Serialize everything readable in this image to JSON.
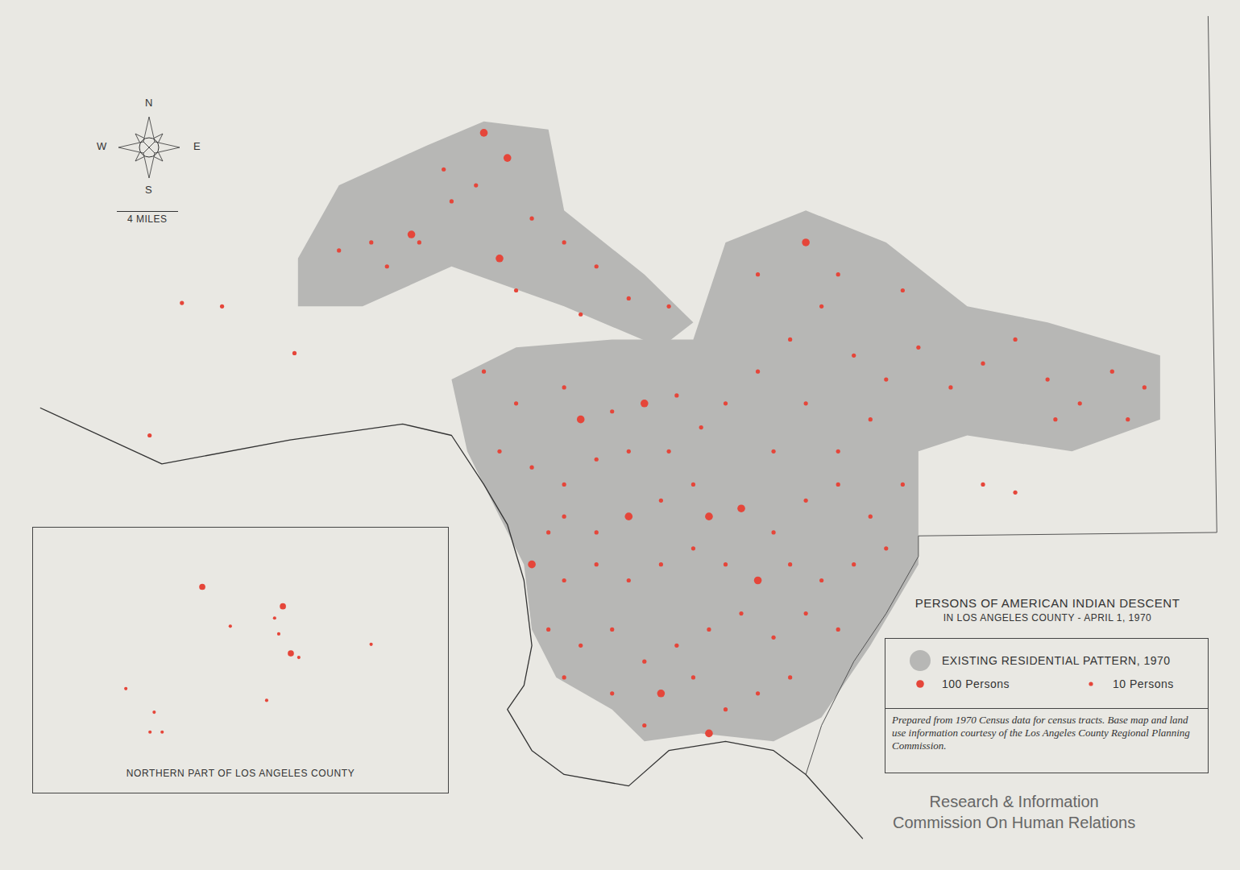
{
  "chart_data": {
    "type": "map",
    "title": "PERSONS OF AMERICAN INDIAN DESCENT",
    "subtitle": "IN LOS ANGELES COUNTY - APRIL 1, 1970",
    "tick_labels": false,
    "xlim": [
      -119.021,
      -117.6
    ],
    "ylim": [
      33.643,
      34.405
    ],
    "legend_entries": [
      {
        "name": "EXISTING RESIDENTIAL PATTERN, 1970",
        "color": "#b7b7b5"
      },
      {
        "name": "100 Persons",
        "persons": 100,
        "color": "#e5463a"
      },
      {
        "name": "10 Persons",
        "persons": 10,
        "color": "#e5463a"
      }
    ],
    "note": "Prepared from 1970 Census data for census tracts. Base map and land use information courtesy of the Los Angeles County Regional Planning Commission.",
    "credit": [
      "Research & Information",
      "Commission On Human Relations"
    ],
    "compass": [
      "N",
      "E",
      "S",
      "W"
    ],
    "scale_bar": {
      "miles": 4,
      "label": "4 MILES"
    },
    "coastline": [
      [
        -118.975,
        34.048
      ],
      [
        -118.836,
        33.999
      ],
      [
        -118.689,
        34.02
      ],
      [
        -118.56,
        34.034
      ],
      [
        -118.504,
        34.024
      ],
      [
        -118.467,
        33.981
      ],
      [
        -118.44,
        33.946
      ],
      [
        -118.421,
        33.897
      ],
      [
        -118.412,
        33.84
      ],
      [
        -118.421,
        33.805
      ],
      [
        -118.44,
        33.784
      ],
      [
        -118.412,
        33.748
      ],
      [
        -118.375,
        33.727
      ],
      [
        -118.301,
        33.717
      ],
      [
        -118.255,
        33.748
      ],
      [
        -118.19,
        33.756
      ],
      [
        -118.135,
        33.748
      ],
      [
        -118.098,
        33.727
      ],
      [
        -118.033,
        33.671
      ]
    ],
    "county_boundary": [
      [
        -117.637,
        34.391
      ],
      [
        -117.627,
        33.939
      ],
      [
        -117.969,
        33.936
      ],
      [
        -117.969,
        33.918
      ],
      [
        -118.006,
        33.868
      ],
      [
        -118.043,
        33.826
      ],
      [
        -118.08,
        33.77
      ],
      [
        -118.098,
        33.727
      ]
    ],
    "residential_areas": [
      [
        [
          -118.68,
          34.179
        ],
        [
          -118.633,
          34.243
        ],
        [
          -118.532,
          34.278
        ],
        [
          -118.467,
          34.299
        ],
        [
          -118.393,
          34.292
        ],
        [
          -118.375,
          34.221
        ],
        [
          -118.283,
          34.165
        ],
        [
          -118.227,
          34.123
        ],
        [
          -118.264,
          34.101
        ],
        [
          -118.375,
          34.137
        ],
        [
          -118.504,
          34.172
        ],
        [
          -118.606,
          34.137
        ],
        [
          -118.68,
          34.137
        ]
      ],
      [
        [
          -118.504,
          34.073
        ],
        [
          -118.43,
          34.101
        ],
        [
          -118.32,
          34.108
        ],
        [
          -118.227,
          34.108
        ],
        [
          -118.19,
          34.193
        ],
        [
          -118.098,
          34.221
        ],
        [
          -118.006,
          34.193
        ],
        [
          -117.913,
          34.137
        ],
        [
          -117.821,
          34.123
        ],
        [
          -117.692,
          34.094
        ],
        [
          -117.692,
          34.038
        ],
        [
          -117.793,
          34.01
        ],
        [
          -117.913,
          34.024
        ],
        [
          -117.969,
          34.01
        ],
        [
          -117.969,
          33.911
        ],
        [
          -118.024,
          33.84
        ],
        [
          -118.08,
          33.777
        ],
        [
          -118.135,
          33.756
        ],
        [
          -118.218,
          33.763
        ],
        [
          -118.283,
          33.756
        ],
        [
          -118.32,
          33.784
        ],
        [
          -118.384,
          33.812
        ],
        [
          -118.412,
          33.854
        ],
        [
          -118.421,
          33.911
        ],
        [
          -118.449,
          33.953
        ],
        [
          -118.486,
          34.01
        ]
      ]
    ],
    "points": [
      {
        "lon": -118.467,
        "lat": 34.289,
        "persons": 100
      },
      {
        "lon": -118.44,
        "lat": 34.267,
        "persons": 100
      },
      {
        "lon": -118.476,
        "lat": 34.243,
        "persons": 10
      },
      {
        "lon": -118.504,
        "lat": 34.229,
        "persons": 10
      },
      {
        "lon": -118.541,
        "lat": 34.193,
        "persons": 10
      },
      {
        "lon": -118.596,
        "lat": 34.193,
        "persons": 10
      },
      {
        "lon": -118.633,
        "lat": 34.186,
        "persons": 10
      },
      {
        "lon": -118.55,
        "lat": 34.2,
        "persons": 100
      },
      {
        "lon": -118.449,
        "lat": 34.179,
        "persons": 100
      },
      {
        "lon": -118.412,
        "lat": 34.214,
        "persons": 10
      },
      {
        "lon": -118.375,
        "lat": 34.193,
        "persons": 10
      },
      {
        "lon": -118.338,
        "lat": 34.172,
        "persons": 10
      },
      {
        "lon": -118.301,
        "lat": 34.144,
        "persons": 10
      },
      {
        "lon": -118.255,
        "lat": 34.137,
        "persons": 10
      },
      {
        "lon": -118.513,
        "lat": 34.257,
        "persons": 10
      },
      {
        "lon": -118.578,
        "lat": 34.172,
        "persons": 10
      },
      {
        "lon": -118.43,
        "lat": 34.151,
        "persons": 10
      },
      {
        "lon": -118.356,
        "lat": 34.13,
        "persons": 10
      },
      {
        "lon": -118.467,
        "lat": 34.08,
        "persons": 10
      },
      {
        "lon": -118.43,
        "lat": 34.052,
        "persons": 10
      },
      {
        "lon": -118.375,
        "lat": 34.066,
        "persons": 10
      },
      {
        "lon": -118.356,
        "lat": 34.038,
        "persons": 100
      },
      {
        "lon": -118.32,
        "lat": 34.045,
        "persons": 10
      },
      {
        "lon": -118.283,
        "lat": 34.052,
        "persons": 100
      },
      {
        "lon": -118.246,
        "lat": 34.059,
        "persons": 10
      },
      {
        "lon": -118.449,
        "lat": 34.01,
        "persons": 10
      },
      {
        "lon": -118.412,
        "lat": 33.996,
        "persons": 10
      },
      {
        "lon": -118.375,
        "lat": 33.981,
        "persons": 10
      },
      {
        "lon": -118.338,
        "lat": 34.003,
        "persons": 10
      },
      {
        "lon": -118.301,
        "lat": 34.01,
        "persons": 10
      },
      {
        "lon": -118.255,
        "lat": 34.01,
        "persons": 10
      },
      {
        "lon": -118.218,
        "lat": 34.031,
        "persons": 10
      },
      {
        "lon": -118.19,
        "lat": 34.052,
        "persons": 10
      },
      {
        "lon": -118.153,
        "lat": 34.08,
        "persons": 10
      },
      {
        "lon": -118.116,
        "lat": 34.108,
        "persons": 10
      },
      {
        "lon": -118.08,
        "lat": 34.137,
        "persons": 10
      },
      {
        "lon": -118.043,
        "lat": 34.094,
        "persons": 10
      },
      {
        "lon": -118.006,
        "lat": 34.073,
        "persons": 10
      },
      {
        "lon": -117.969,
        "lat": 34.101,
        "persons": 10
      },
      {
        "lon": -117.932,
        "lat": 34.066,
        "persons": 10
      },
      {
        "lon": -117.895,
        "lat": 34.087,
        "persons": 10
      },
      {
        "lon": -117.858,
        "lat": 34.108,
        "persons": 10
      },
      {
        "lon": -117.821,
        "lat": 34.073,
        "persons": 10
      },
      {
        "lon": -117.784,
        "lat": 34.052,
        "persons": 10
      },
      {
        "lon": -117.747,
        "lat": 34.08,
        "persons": 10
      },
      {
        "lon": -117.71,
        "lat": 34.066,
        "persons": 10
      },
      {
        "lon": -118.098,
        "lat": 34.052,
        "persons": 10
      },
      {
        "lon": -118.135,
        "lat": 34.01,
        "persons": 10
      },
      {
        "lon": -118.061,
        "lat": 34.01,
        "persons": 10
      },
      {
        "lon": -118.024,
        "lat": 34.038,
        "persons": 10
      },
      {
        "lon": -118.153,
        "lat": 34.165,
        "persons": 10
      },
      {
        "lon": -118.098,
        "lat": 34.193,
        "persons": 100
      },
      {
        "lon": -118.061,
        "lat": 34.165,
        "persons": 10
      },
      {
        "lon": -117.987,
        "lat": 34.151,
        "persons": 10
      },
      {
        "lon": -118.375,
        "lat": 33.953,
        "persons": 10
      },
      {
        "lon": -118.338,
        "lat": 33.939,
        "persons": 10
      },
      {
        "lon": -118.301,
        "lat": 33.953,
        "persons": 100
      },
      {
        "lon": -118.264,
        "lat": 33.967,
        "persons": 10
      },
      {
        "lon": -118.227,
        "lat": 33.981,
        "persons": 10
      },
      {
        "lon": -118.209,
        "lat": 33.953,
        "persons": 100
      },
      {
        "lon": -118.172,
        "lat": 33.96,
        "persons": 100
      },
      {
        "lon": -118.135,
        "lat": 33.939,
        "persons": 10
      },
      {
        "lon": -118.098,
        "lat": 33.967,
        "persons": 10
      },
      {
        "lon": -118.061,
        "lat": 33.981,
        "persons": 10
      },
      {
        "lon": -118.024,
        "lat": 33.953,
        "persons": 10
      },
      {
        "lon": -117.987,
        "lat": 33.981,
        "persons": 10
      },
      {
        "lon": -118.375,
        "lat": 33.897,
        "persons": 10
      },
      {
        "lon": -118.338,
        "lat": 33.911,
        "persons": 10
      },
      {
        "lon": -118.301,
        "lat": 33.897,
        "persons": 10
      },
      {
        "lon": -118.264,
        "lat": 33.911,
        "persons": 10
      },
      {
        "lon": -118.227,
        "lat": 33.925,
        "persons": 10
      },
      {
        "lon": -118.19,
        "lat": 33.911,
        "persons": 10
      },
      {
        "lon": -118.153,
        "lat": 33.897,
        "persons": 100
      },
      {
        "lon": -118.116,
        "lat": 33.911,
        "persons": 10
      },
      {
        "lon": -118.08,
        "lat": 33.897,
        "persons": 10
      },
      {
        "lon": -118.043,
        "lat": 33.911,
        "persons": 10
      },
      {
        "lon": -118.006,
        "lat": 33.925,
        "persons": 10
      },
      {
        "lon": -118.393,
        "lat": 33.854,
        "persons": 10
      },
      {
        "lon": -118.356,
        "lat": 33.84,
        "persons": 10
      },
      {
        "lon": -118.32,
        "lat": 33.854,
        "persons": 10
      },
      {
        "lon": -118.283,
        "lat": 33.826,
        "persons": 10
      },
      {
        "lon": -118.246,
        "lat": 33.84,
        "persons": 10
      },
      {
        "lon": -118.209,
        "lat": 33.854,
        "persons": 10
      },
      {
        "lon": -118.172,
        "lat": 33.868,
        "persons": 10
      },
      {
        "lon": -118.135,
        "lat": 33.847,
        "persons": 10
      },
      {
        "lon": -118.098,
        "lat": 33.868,
        "persons": 10
      },
      {
        "lon": -118.061,
        "lat": 33.854,
        "persons": 10
      },
      {
        "lon": -118.375,
        "lat": 33.812,
        "persons": 10
      },
      {
        "lon": -118.32,
        "lat": 33.798,
        "persons": 10
      },
      {
        "lon": -118.264,
        "lat": 33.798,
        "persons": 100
      },
      {
        "lon": -118.227,
        "lat": 33.812,
        "persons": 10
      },
      {
        "lon": -118.19,
        "lat": 33.784,
        "persons": 10
      },
      {
        "lon": -118.153,
        "lat": 33.798,
        "persons": 10
      },
      {
        "lon": -118.116,
        "lat": 33.812,
        "persons": 10
      },
      {
        "lon": -118.283,
        "lat": 33.77,
        "persons": 10
      },
      {
        "lon": -118.209,
        "lat": 33.763,
        "persons": 100
      },
      {
        "lon": -118.412,
        "lat": 33.911,
        "persons": 100
      },
      {
        "lon": -118.393,
        "lat": 33.939,
        "persons": 10
      },
      {
        "lon": -117.895,
        "lat": 33.981,
        "persons": 10
      },
      {
        "lon": -117.858,
        "lat": 33.974,
        "persons": 10
      },
      {
        "lon": -117.812,
        "lat": 34.038,
        "persons": 10
      },
      {
        "lon": -117.729,
        "lat": 34.038,
        "persons": 10
      },
      {
        "lon": -118.813,
        "lat": 34.14,
        "persons": 10
      },
      {
        "lon": -118.767,
        "lat": 34.137,
        "persons": 10
      },
      {
        "lon": -118.684,
        "lat": 34.096,
        "persons": 10
      },
      {
        "lon": -118.85,
        "lat": 34.024,
        "persons": 10
      }
    ],
    "inset": {
      "title": "NORTHERN PART OF LOS ANGELES COUNTY",
      "xlim": [
        -118.95,
        -117.65
      ],
      "ylim": [
        34.3,
        34.82
      ],
      "points": [
        {
          "lon": -118.42,
          "lat": 34.69,
          "persons": 100
        },
        {
          "lon": -118.193,
          "lat": 34.621,
          "persons": 10
        },
        {
          "lon": -118.167,
          "lat": 34.647,
          "persons": 100
        },
        {
          "lon": -118.18,
          "lat": 34.586,
          "persons": 10
        },
        {
          "lon": -118.142,
          "lat": 34.543,
          "persons": 100
        },
        {
          "lon": -118.117,
          "lat": 34.534,
          "persons": 10
        },
        {
          "lon": -118.332,
          "lat": 34.603,
          "persons": 10
        },
        {
          "lon": -117.89,
          "lat": 34.563,
          "persons": 10
        },
        {
          "lon": -118.66,
          "lat": 34.465,
          "persons": 10
        },
        {
          "lon": -118.571,
          "lat": 34.413,
          "persons": 10
        },
        {
          "lon": -118.584,
          "lat": 34.369,
          "persons": 10
        },
        {
          "lon": -118.546,
          "lat": 34.369,
          "persons": 10
        },
        {
          "lon": -118.218,
          "lat": 34.439,
          "persons": 10
        }
      ]
    }
  }
}
